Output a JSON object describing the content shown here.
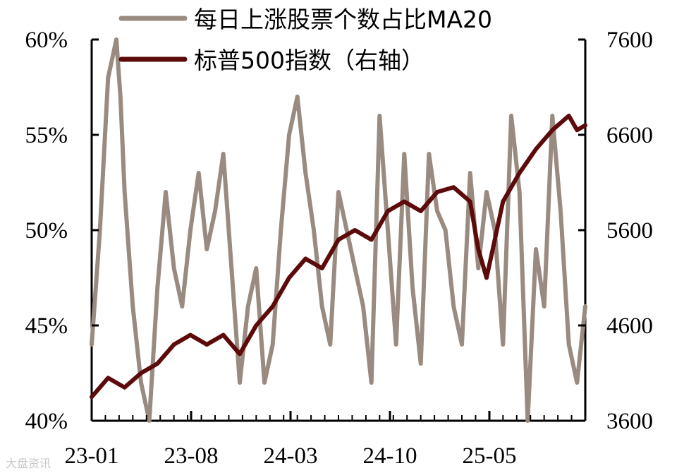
{
  "chart_data": {
    "type": "line",
    "x_tick_labels": [
      "23-01",
      "23-08",
      "24-03",
      "24-10",
      "25-05"
    ],
    "y_left_ticks": [
      "40%",
      "45%",
      "50%",
      "55%",
      "60%"
    ],
    "y_left_range": [
      40,
      60
    ],
    "y_right_ticks": [
      "3600",
      "4600",
      "5600",
      "6600",
      "7600"
    ],
    "y_right_range": [
      3600,
      7600
    ],
    "series": [
      {
        "name": "每日上涨股票个数占比MA20",
        "axis": "left",
        "color": "#9a8b80",
        "x": [
          0,
          1,
          2,
          3,
          3.5,
          4,
          5,
          6,
          7,
          8,
          9,
          10,
          11,
          12,
          13,
          14,
          15,
          16,
          17,
          18,
          19,
          20,
          21,
          22,
          23,
          24,
          25,
          26,
          27,
          28,
          29,
          30,
          31,
          32,
          33,
          34,
          35,
          36,
          37,
          38,
          39,
          40,
          41,
          42,
          43,
          44,
          45,
          46,
          47,
          48,
          49,
          50,
          51,
          52,
          53,
          54,
          55,
          56,
          57,
          58,
          59,
          60
        ],
        "y": [
          44,
          50,
          58,
          60,
          57,
          52,
          46,
          42,
          40,
          47,
          52,
          48,
          46,
          50,
          53,
          49,
          51,
          54,
          48,
          42,
          46,
          48,
          42,
          44,
          50,
          55,
          57,
          53,
          50,
          46,
          44,
          52,
          50,
          48,
          46,
          42,
          56,
          50,
          44,
          54,
          47,
          43,
          54,
          51,
          50,
          46,
          44,
          53,
          48,
          52,
          50,
          44,
          56,
          52,
          40,
          49,
          46,
          56,
          51,
          44,
          42,
          46
        ],
        "values_note": ""
      },
      {
        "name": "标普500指数（右轴）",
        "axis": "right",
        "color": "#5c0a0a",
        "x": [
          0,
          2,
          4,
          6,
          8,
          10,
          12,
          14,
          16,
          18,
          20,
          22,
          24,
          26,
          28,
          30,
          32,
          34,
          36,
          38,
          40,
          42,
          44,
          46,
          47,
          48,
          49,
          50,
          52,
          54,
          56,
          58,
          59,
          60
        ],
        "y": [
          3850,
          4050,
          3950,
          4100,
          4200,
          4400,
          4500,
          4400,
          4500,
          4300,
          4600,
          4800,
          5100,
          5300,
          5200,
          5500,
          5600,
          5500,
          5800,
          5900,
          5800,
          6000,
          6050,
          5900,
          5400,
          5100,
          5500,
          5900,
          6200,
          6450,
          6650,
          6800,
          6650,
          6700
        ]
      }
    ],
    "legend_placement": "top-center",
    "grid": false
  },
  "watermark": "大盘资讯"
}
